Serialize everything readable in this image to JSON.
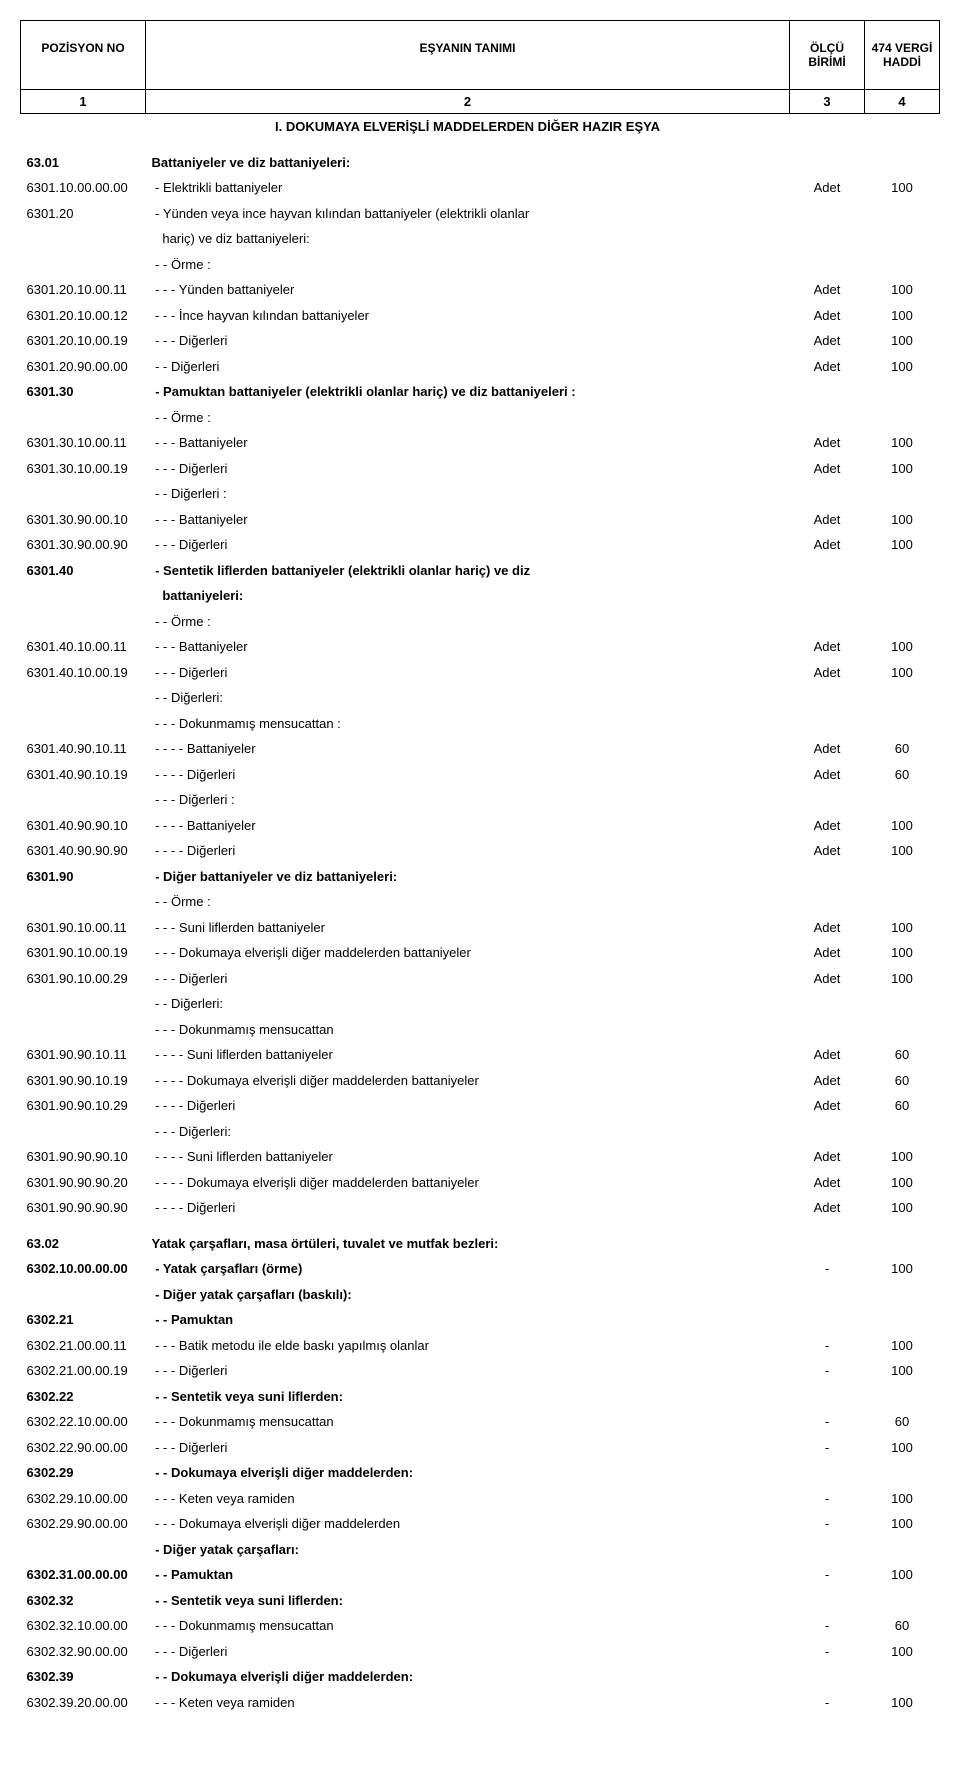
{
  "header": {
    "col1": "POZİSYON NO",
    "col2": "EŞYANIN TANIMI",
    "col3": "ÖLÇÜ BİRİMİ",
    "col4": "474 VERGİ HADDİ",
    "n1": "1",
    "n2": "2",
    "n3": "3",
    "n4": "4",
    "section": "I. DOKUMAYA ELVERİŞLİ MADDELERDEN DİĞER HAZIR EŞYA"
  },
  "rows": [
    {
      "pos": "63.01",
      "desc": "Battaniyeler ve diz battaniyeleri:",
      "unit": "",
      "tax": "",
      "bold": true
    },
    {
      "pos": "6301.10.00.00.00",
      "desc": " - Elektrikli battaniyeler",
      "unit": "Adet",
      "tax": "100",
      "bold": false
    },
    {
      "pos": "6301.20",
      "desc": " - Yünden veya ince hayvan kılından battaniyeler (elektrikli olanlar",
      "unit": "",
      "tax": "",
      "bold": false
    },
    {
      "pos": "",
      "desc": "   hariç) ve diz battaniyeleri:",
      "unit": "",
      "tax": "",
      "bold": false
    },
    {
      "pos": "",
      "desc": " - - Örme :",
      "unit": "",
      "tax": "",
      "bold": false
    },
    {
      "pos": "6301.20.10.00.11",
      "desc": " - - - Yünden battaniyeler",
      "unit": "Adet",
      "tax": "100",
      "bold": false
    },
    {
      "pos": "6301.20.10.00.12",
      "desc": " - - - İnce hayvan kılından battaniyeler",
      "unit": "Adet",
      "tax": "100",
      "bold": false
    },
    {
      "pos": "6301.20.10.00.19",
      "desc": " - - - Diğerleri",
      "unit": "Adet",
      "tax": "100",
      "bold": false
    },
    {
      "pos": "6301.20.90.00.00",
      "desc": " - - Diğerleri",
      "unit": "Adet",
      "tax": "100",
      "bold": false
    },
    {
      "pos": "6301.30",
      "desc": " - Pamuktan battaniyeler (elektrikli olanlar hariç) ve diz battaniyeleri :",
      "unit": "",
      "tax": "",
      "bold": true
    },
    {
      "pos": "",
      "desc": " - - Örme :",
      "unit": "",
      "tax": "",
      "bold": false
    },
    {
      "pos": "6301.30.10.00.11",
      "desc": " - - - Battaniyeler",
      "unit": "Adet",
      "tax": "100",
      "bold": false
    },
    {
      "pos": "6301.30.10.00.19",
      "desc": " - - - Diğerleri",
      "unit": "Adet",
      "tax": "100",
      "bold": false
    },
    {
      "pos": "",
      "desc": " - - Diğerleri :",
      "unit": "",
      "tax": "",
      "bold": false
    },
    {
      "pos": "6301.30.90.00.10",
      "desc": " - - - Battaniyeler",
      "unit": "Adet",
      "tax": "100",
      "bold": false
    },
    {
      "pos": "6301.30.90.00.90",
      "desc": " - - - Diğerleri",
      "unit": "Adet",
      "tax": "100",
      "bold": false
    },
    {
      "pos": "6301.40",
      "desc": " - Sentetik liflerden battaniyeler (elektrikli olanlar hariç) ve diz",
      "unit": "",
      "tax": "",
      "bold": true
    },
    {
      "pos": "",
      "desc": "   battaniyeleri:",
      "unit": "",
      "tax": "",
      "bold": true
    },
    {
      "pos": "",
      "desc": " - - Örme :",
      "unit": "",
      "tax": "",
      "bold": false
    },
    {
      "pos": "6301.40.10.00.11",
      "desc": " - - - Battaniyeler",
      "unit": "Adet",
      "tax": "100",
      "bold": false
    },
    {
      "pos": "6301.40.10.00.19",
      "desc": " - - - Diğerleri",
      "unit": "Adet",
      "tax": "100",
      "bold": false
    },
    {
      "pos": "",
      "desc": " - - Diğerleri:",
      "unit": "",
      "tax": "",
      "bold": false
    },
    {
      "pos": "",
      "desc": " - - - Dokunmamış mensucattan :",
      "unit": "",
      "tax": "",
      "bold": false
    },
    {
      "pos": "6301.40.90.10.11",
      "desc": " - - - - Battaniyeler",
      "unit": "Adet",
      "tax": "60",
      "bold": false
    },
    {
      "pos": "6301.40.90.10.19",
      "desc": " - - - - Diğerleri",
      "unit": "Adet",
      "tax": "60",
      "bold": false
    },
    {
      "pos": "",
      "desc": " - - - Diğerleri :",
      "unit": "",
      "tax": "",
      "bold": false
    },
    {
      "pos": "6301.40.90.90.10",
      "desc": " - - - - Battaniyeler",
      "unit": "Adet",
      "tax": "100",
      "bold": false
    },
    {
      "pos": "6301.40.90.90.90",
      "desc": " - - - - Diğerleri",
      "unit": "Adet",
      "tax": "100",
      "bold": false
    },
    {
      "pos": "6301.90",
      "desc": " - Diğer battaniyeler ve diz battaniyeleri:",
      "unit": "",
      "tax": "",
      "bold": true
    },
    {
      "pos": "",
      "desc": " - - Örme :",
      "unit": "",
      "tax": "",
      "bold": false
    },
    {
      "pos": "6301.90.10.00.11",
      "desc": " - - - Suni liflerden battaniyeler",
      "unit": "Adet",
      "tax": "100",
      "bold": false
    },
    {
      "pos": "6301.90.10.00.19",
      "desc": " - - - Dokumaya elverişli diğer maddelerden battaniyeler",
      "unit": "Adet",
      "tax": "100",
      "bold": false
    },
    {
      "pos": "6301.90.10.00.29",
      "desc": " - - - Diğerleri",
      "unit": "Adet",
      "tax": "100",
      "bold": false
    },
    {
      "pos": "",
      "desc": " - - Diğerleri:",
      "unit": "",
      "tax": "",
      "bold": false
    },
    {
      "pos": "",
      "desc": " - - - Dokunmamış mensucattan",
      "unit": "",
      "tax": "",
      "bold": false
    },
    {
      "pos": "6301.90.90.10.11",
      "desc": " - - - - Suni liflerden battaniyeler",
      "unit": "Adet",
      "tax": "60",
      "bold": false
    },
    {
      "pos": "6301.90.90.10.19",
      "desc": " - - - - Dokumaya elverişli diğer maddelerden battaniyeler",
      "unit": "Adet",
      "tax": "60",
      "bold": false
    },
    {
      "pos": "6301.90.90.10.29",
      "desc": " - - - - Diğerleri",
      "unit": "Adet",
      "tax": "60",
      "bold": false
    },
    {
      "pos": "",
      "desc": " - - - Diğerleri:",
      "unit": "",
      "tax": "",
      "bold": false
    },
    {
      "pos": "6301.90.90.90.10",
      "desc": " - - - - Suni liflerden battaniyeler",
      "unit": "Adet",
      "tax": "100",
      "bold": false
    },
    {
      "pos": "6301.90.90.90.20",
      "desc": " - - - - Dokumaya elverişli diğer maddelerden battaniyeler",
      "unit": "Adet",
      "tax": "100",
      "bold": false
    },
    {
      "pos": "6301.90.90.90.90",
      "desc": " - - - - Diğerleri",
      "unit": "Adet",
      "tax": "100",
      "bold": false
    },
    {
      "spacer": true
    },
    {
      "pos": "63.02",
      "desc": "Yatak çarşafları, masa örtüleri, tuvalet ve mutfak bezleri:",
      "unit": "",
      "tax": "",
      "bold": true
    },
    {
      "pos": "6302.10.00.00.00",
      "desc": " - Yatak çarşafları (örme)",
      "unit": "-",
      "tax": "100",
      "bold": true
    },
    {
      "pos": "",
      "desc": " - Diğer yatak çarşafları (baskılı):",
      "unit": "",
      "tax": "",
      "bold": true
    },
    {
      "pos": "6302.21",
      "desc": " - - Pamuktan",
      "unit": "",
      "tax": "",
      "bold": true
    },
    {
      "pos": "6302.21.00.00.11",
      "desc": " - - - Batik metodu ile elde baskı yapılmış olanlar",
      "unit": "-",
      "tax": "100",
      "bold": false
    },
    {
      "pos": "6302.21.00.00.19",
      "desc": " - - - Diğerleri",
      "unit": "-",
      "tax": "100",
      "bold": false
    },
    {
      "pos": "6302.22",
      "desc": " - - Sentetik veya suni liflerden:",
      "unit": "",
      "tax": "",
      "bold": true
    },
    {
      "pos": "6302.22.10.00.00",
      "desc": " - - - Dokunmamış mensucattan",
      "unit": "-",
      "tax": "60",
      "bold": false
    },
    {
      "pos": "6302.22.90.00.00",
      "desc": " - - - Diğerleri",
      "unit": "-",
      "tax": "100",
      "bold": false
    },
    {
      "pos": "6302.29",
      "desc": " - - Dokumaya elverişli diğer maddelerden:",
      "unit": "",
      "tax": "",
      "bold": true
    },
    {
      "pos": "6302.29.10.00.00",
      "desc": " - - - Keten veya ramiden",
      "unit": "-",
      "tax": "100",
      "bold": false
    },
    {
      "pos": "6302.29.90.00.00",
      "desc": " - - - Dokumaya elverişli diğer maddelerden",
      "unit": "-",
      "tax": "100",
      "bold": false
    },
    {
      "pos": "",
      "desc": " - Diğer yatak çarşafları:",
      "unit": "",
      "tax": "",
      "bold": true
    },
    {
      "pos": "6302.31.00.00.00",
      "desc": " - - Pamuktan",
      "unit": "-",
      "tax": "100",
      "bold": true
    },
    {
      "pos": "6302.32",
      "desc": " - - Sentetik veya suni liflerden:",
      "unit": "",
      "tax": "",
      "bold": true
    },
    {
      "pos": "6302.32.10.00.00",
      "desc": " - - - Dokunmamış mensucattan",
      "unit": "-",
      "tax": "60",
      "bold": false
    },
    {
      "pos": "6302.32.90.00.00",
      "desc": " - - - Diğerleri",
      "unit": "-",
      "tax": "100",
      "bold": false
    },
    {
      "pos": "6302.39",
      "desc": " - - Dokumaya elverişli diğer maddelerden:",
      "unit": "",
      "tax": "",
      "bold": true
    },
    {
      "pos": "6302.39.20.00.00",
      "desc": " - - - Keten veya ramiden",
      "unit": "-",
      "tax": "100",
      "bold": false
    }
  ]
}
